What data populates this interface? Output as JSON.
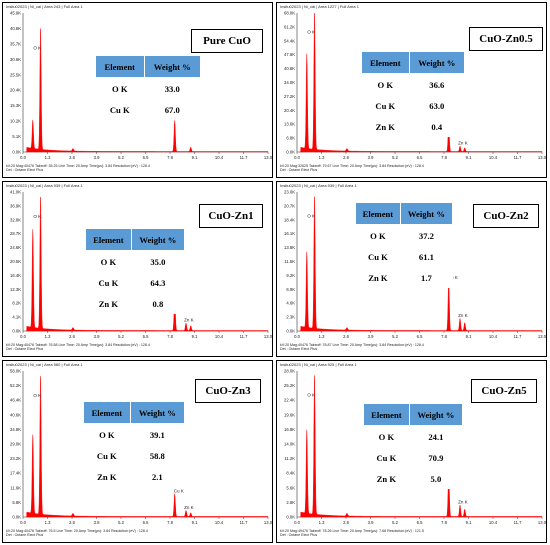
{
  "table_headers": {
    "element": "Element",
    "weight": "Weight %"
  },
  "colors": {
    "spectrum": "#ff0000",
    "table_header": "#5b9bd5"
  },
  "chart_data": [
    {
      "type": "table",
      "panel_label": "Pure CuO",
      "header_text": "Insitu02023 | Ni_cal | Area 243 | Full Area 1",
      "footer_line1": "kV:20    Mag:40476   Takeoff: 35.25    Live Time: 20    Amp Time(µs): 3.84    Resolution:(eV) : 128.4",
      "footer_line2": "Det : Octane Elect Plus",
      "y_ticks": [
        "45.9K",
        "40.8K",
        "35.7K",
        "30.6K",
        "25.5K",
        "20.4K",
        "15.3K",
        "10.2K",
        "5.1K",
        "0.0K"
      ],
      "x_ticks": [
        "0.0",
        "1.3",
        "2.6",
        "3.9",
        "5.2",
        "6.5",
        "7.8",
        "9.1",
        "10.4",
        "11.7",
        "13.0"
      ],
      "peak_labels": [
        "O K",
        "Cu K"
      ],
      "table": [
        [
          "O K",
          "33.0"
        ],
        [
          "Cu K",
          "67.0"
        ]
      ],
      "ymax": 51,
      "peaks": [
        [
          0.52,
          10.4
        ],
        [
          0.93,
          44.3
        ],
        [
          8.05,
          11.4
        ],
        [
          8.9,
          1.6
        ]
      ]
    },
    {
      "type": "table",
      "panel_label": "CuO-Zn0.5",
      "header_text": "Insitu02023 | Ni_cal | Area 1227 | Full Area 1",
      "footer_line1": "kV:20    Mag:32625   Takeoff: 79.67    Live Time: 20    Amp Time(µs): 3.84    Resolution:(eV) : 128.4",
      "footer_line2": "Det : Octane Elect Plus",
      "y_ticks": [
        "68.0K",
        "61.2K",
        "54.4K",
        "47.6K",
        "40.8K",
        "34.0K",
        "27.2K",
        "20.4K",
        "13.6K",
        "6.8K",
        "0.0K"
      ],
      "x_ticks": [
        "0.0",
        "1.3",
        "2.6",
        "3.9",
        "5.2",
        "6.5",
        "7.8",
        "9.1",
        "10.4",
        "11.7",
        "13.0"
      ],
      "peak_labels": [
        "O K",
        "Cu K",
        "Zn K"
      ],
      "table": [
        [
          "O K",
          "36.6"
        ],
        [
          "Cu K",
          "63.0"
        ],
        [
          "Zn K",
          "0.4"
        ]
      ],
      "ymax": 68,
      "peaks": [
        [
          0.52,
          46.3
        ],
        [
          0.93,
          66.8
        ],
        [
          8.05,
          13.4
        ],
        [
          8.65,
          2.6
        ],
        [
          8.9,
          1.8
        ]
      ]
    },
    {
      "type": "table",
      "panel_label": "CuO-Zn1",
      "header_text": "Insitu02023 | Ni_cal | Area 939 | Full Area 1",
      "footer_line1": "kV:20    Mag:40476   Takeoff: 76.58    Live Time: 20    Amp Time(µs): 3.84    Resolution:(eV) : 128.4",
      "footer_line2": "Det : Octane Elect Plus",
      "y_ticks": [
        "41.0K",
        "36.9K",
        "32.8K",
        "28.7K",
        "24.6K",
        "20.5K",
        "16.4K",
        "12.3K",
        "8.2K",
        "4.1K",
        "0.0K"
      ],
      "x_ticks": [
        "0.0",
        "1.3",
        "2.6",
        "3.9",
        "5.2",
        "6.5",
        "7.8",
        "9.1",
        "10.4",
        "11.7",
        "13.0"
      ],
      "peak_labels": [
        "O K",
        "Cu K",
        "Zn K"
      ],
      "table": [
        [
          "O K",
          "35.0"
        ],
        [
          "Cu K",
          "64.3"
        ],
        [
          "Zn K",
          "0.8"
        ]
      ],
      "ymax": 41,
      "peaks": [
        [
          0.52,
          28.9
        ],
        [
          0.93,
          38.7
        ],
        [
          8.05,
          9.8
        ],
        [
          8.65,
          2.2
        ],
        [
          8.9,
          1.4
        ]
      ]
    },
    {
      "type": "table",
      "panel_label": "CuO-Zn2",
      "header_text": "Insitu02023 | Ni_cal | Area 939 | Full Area 1",
      "footer_line1": "kV:20    Mag:40476   Takeoff: 78.87    Live Time: 20    Amp Time(µs): 3.84    Resolution:(eV) : 128.4",
      "footer_line2": "Det : Octane Elect Plus",
      "y_ticks": [
        "23.0K",
        "20.7K",
        "18.4K",
        "16.1K",
        "13.8K",
        "11.5K",
        "9.2K",
        "6.9K",
        "4.6K",
        "2.3K",
        "0.0K"
      ],
      "x_ticks": [
        "0.0",
        "1.3",
        "2.6",
        "3.9",
        "5.2",
        "6.5",
        "7.8",
        "9.1",
        "10.4",
        "11.7",
        "13.0"
      ],
      "peak_labels": [
        "O K",
        "Cu K",
        "Zn K"
      ],
      "table": [
        [
          "O K",
          "37.2"
        ],
        [
          "Cu K",
          "61.1"
        ],
        [
          "Zn K",
          "1.7"
        ]
      ],
      "ymax": 23,
      "peaks": [
        [
          0.52,
          12.5
        ],
        [
          0.93,
          21.8
        ],
        [
          8.05,
          8.3
        ],
        [
          8.65,
          2.0
        ],
        [
          8.9,
          1.3
        ]
      ]
    },
    {
      "type": "table",
      "panel_label": "CuO-Zn3",
      "header_text": "Insitu02023 | Ni_cal | Area 560 | Full Area 1",
      "footer_line1": "kV:20    Mag:40476   Takeoff: 76.5    Live Time: 20    Amp Time(µs): 3.84    Resolution:(eV) : 128.4",
      "footer_line2": "Det : Octane Elect Plus",
      "y_ticks": [
        "58.0K",
        "52.2K",
        "46.4K",
        "40.6K",
        "34.8K",
        "29.0K",
        "23.2K",
        "17.4K",
        "11.6K",
        "5.8K",
        "0.0K"
      ],
      "x_ticks": [
        "0.0",
        "1.3",
        "2.6",
        "3.9",
        "5.2",
        "6.5",
        "7.8",
        "9.1",
        "10.4",
        "11.7",
        "13.0"
      ],
      "peak_labels": [
        "O K",
        "Cu K",
        "Zn K"
      ],
      "table": [
        [
          "O K",
          "39.1"
        ],
        [
          "Cu K",
          "58.8"
        ],
        [
          "Zn K",
          "2.1"
        ]
      ],
      "ymax": 58,
      "peaks": [
        [
          0.52,
          31.2
        ],
        [
          0.93,
          54.8
        ],
        [
          8.05,
          9.0
        ],
        [
          8.65,
          2.4
        ],
        [
          8.9,
          1.5
        ]
      ]
    },
    {
      "type": "table",
      "panel_label": "CuO-Zn5",
      "header_text": "Insitu02023 | Ni_cal | Area 925 | Full Area 1",
      "footer_line1": "kV:20    Mag:49476   Takeoff: 78.26    Live Time: 20    Amp Time(µs): 7.68    Resolution:(eV) : 121.5",
      "footer_line2": "Det : Octane Elect Plus",
      "y_ticks": [
        "28.0K",
        "25.2K",
        "22.4K",
        "19.6K",
        "16.8K",
        "14.0K",
        "11.2K",
        "8.4K",
        "5.6K",
        "2.8K",
        "0.0K"
      ],
      "x_ticks": [
        "0.0",
        "1.3",
        "2.6",
        "3.9",
        "5.2",
        "6.5",
        "7.8",
        "9.1",
        "10.4",
        "11.7",
        "13.0"
      ],
      "peak_labels": [
        "O K",
        "Cu K",
        "Zn K"
      ],
      "table": [
        [
          "O K",
          "24.1"
        ],
        [
          "Cu K",
          "70.9"
        ],
        [
          "Zn K",
          "5.0"
        ]
      ],
      "ymax": 28,
      "peaks": [
        [
          0.52,
          16.0
        ],
        [
          0.93,
          26.6
        ],
        [
          8.05,
          8.6
        ],
        [
          8.65,
          2.2
        ],
        [
          8.9,
          1.4
        ]
      ]
    }
  ]
}
